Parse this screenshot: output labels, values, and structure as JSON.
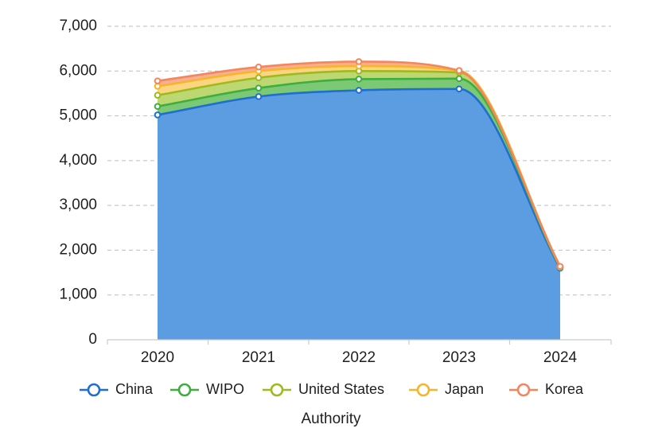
{
  "chart_data": {
    "type": "area",
    "stacked": true,
    "title": "",
    "xlabel": "Authority",
    "ylabel": "",
    "x": [
      "2020",
      "2021",
      "2022",
      "2023",
      "2024"
    ],
    "ylim": [
      0,
      7000
    ],
    "yticks": [
      "0",
      "1,000",
      "2,000",
      "3,000",
      "4,000",
      "5,000",
      "6,000",
      "7,000"
    ],
    "grid": true,
    "legend_position": "bottom",
    "series": [
      {
        "name": "China",
        "color": "#1f6fd1",
        "fill": "#5b9de0",
        "values": [
          5020,
          5430,
          5570,
          5600,
          1600
        ]
      },
      {
        "name": "WIPO",
        "color": "#3fae3f",
        "fill": "#74c66e",
        "values": [
          190,
          190,
          250,
          230,
          15
        ]
      },
      {
        "name": "United States",
        "color": "#9dbb1d",
        "fill": "#b9d56b",
        "values": [
          250,
          230,
          180,
          140,
          10
        ]
      },
      {
        "name": "Japan",
        "color": "#f6b52a",
        "fill": "#fcd37a",
        "values": [
          200,
          150,
          110,
          40,
          8
        ]
      },
      {
        "name": "Korea",
        "color": "#f5855c",
        "fill": "#f8ac8c",
        "values": [
          120,
          90,
          100,
          0,
          5
        ]
      }
    ]
  }
}
